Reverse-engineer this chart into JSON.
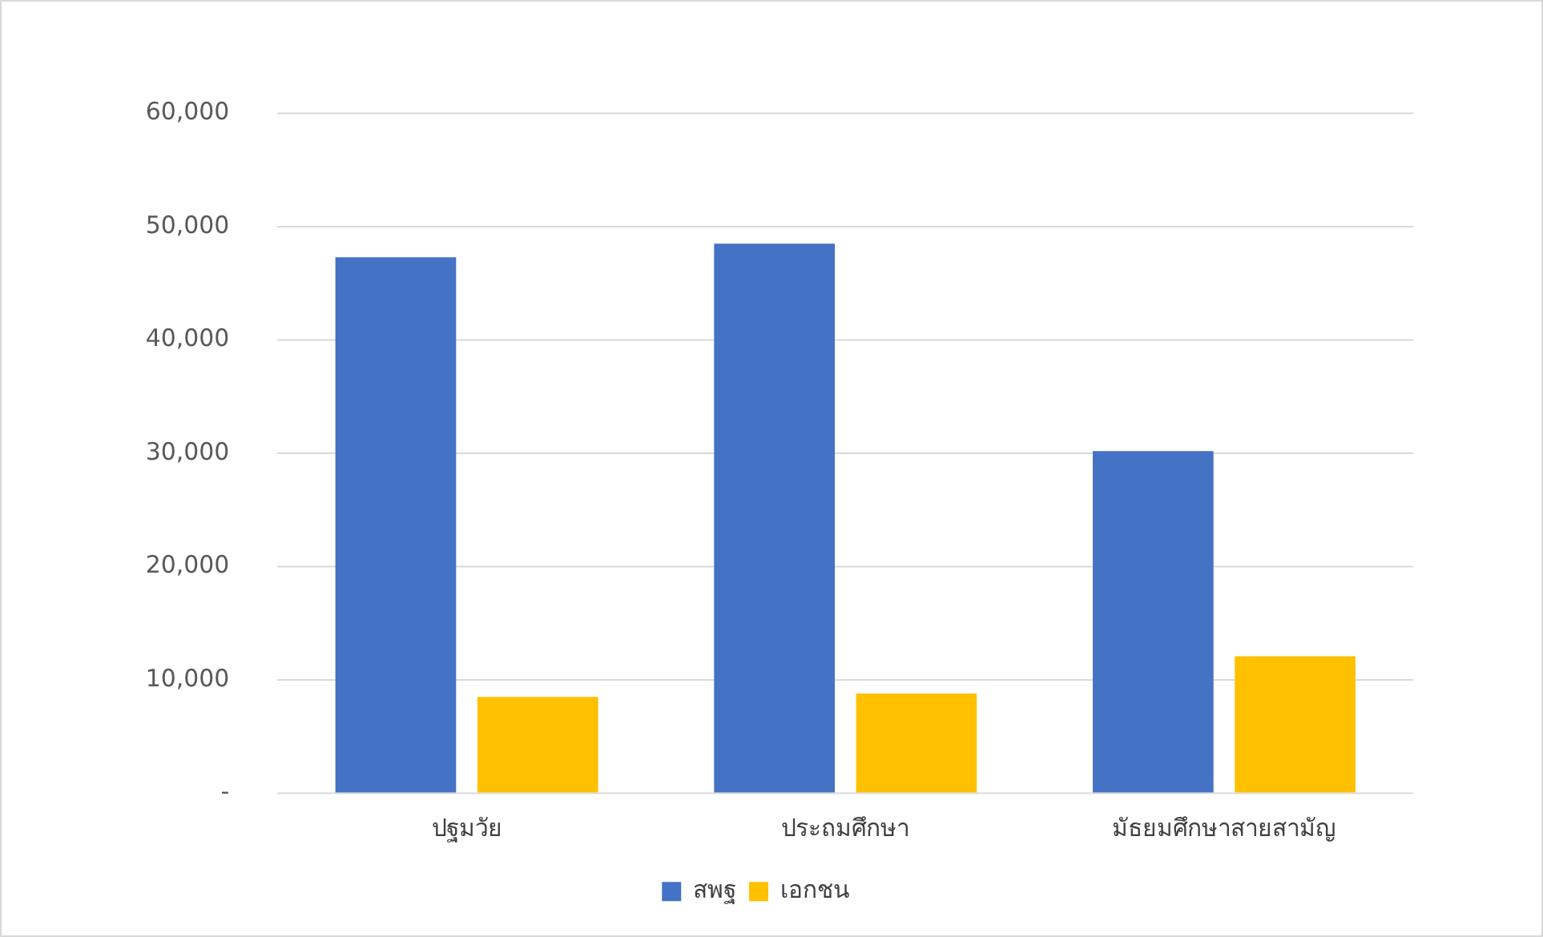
{
  "chart_data": {
    "type": "bar",
    "categories": [
      "ปฐมวัย",
      "ประถมศึกษา",
      "มัธยมศึกษาสายสามัญ"
    ],
    "series": [
      {
        "name": "สพฐ",
        "color": "#4472c4",
        "values": [
          47300,
          48500,
          30200
        ]
      },
      {
        "name": "เอกชน",
        "color": "#ffc000",
        "values": [
          8500,
          8800,
          12100
        ]
      }
    ],
    "ylim": [
      0,
      60000
    ],
    "yticks": [
      {
        "value": 0,
        "label": "-"
      },
      {
        "value": 10000,
        "label": "10,000"
      },
      {
        "value": 20000,
        "label": "20,000"
      },
      {
        "value": 30000,
        "label": "30,000"
      },
      {
        "value": 40000,
        "label": "40,000"
      },
      {
        "value": 50000,
        "label": "50,000"
      },
      {
        "value": 60000,
        "label": "60,000"
      }
    ],
    "grid": "y",
    "legend": "bottom"
  }
}
